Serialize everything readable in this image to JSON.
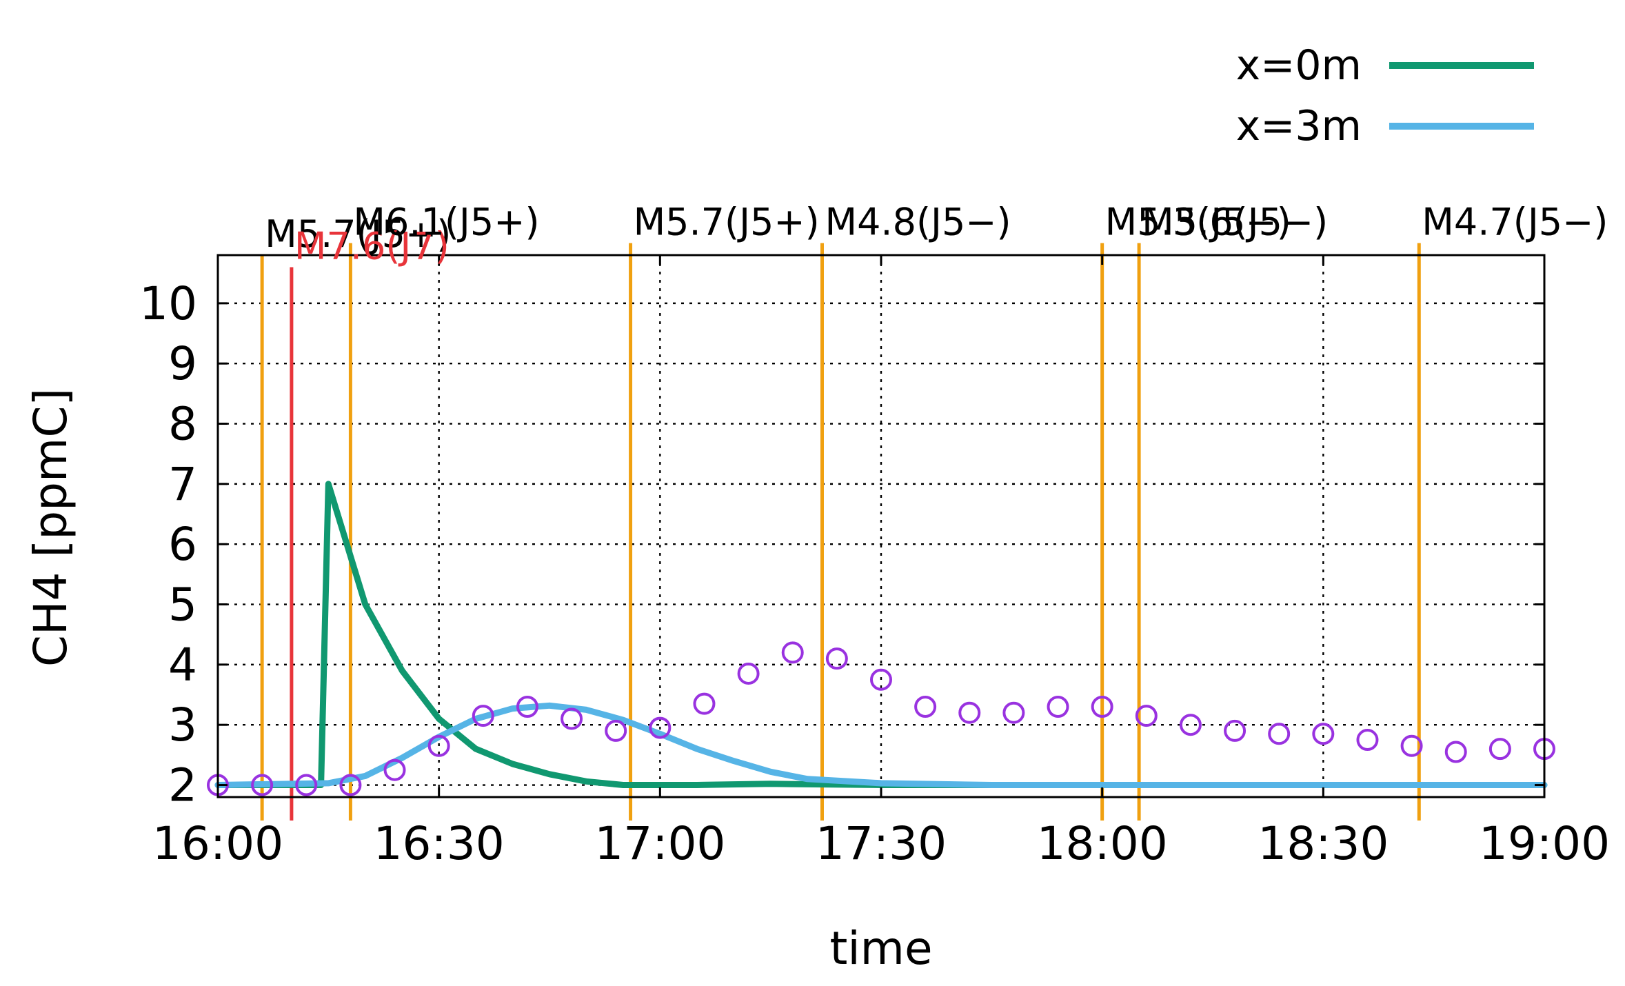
{
  "chart_data": {
    "type": "line",
    "title": "",
    "xlabel": "time",
    "ylabel": "CH4 [ppmC]",
    "x_ticks": [
      "16:00",
      "16:30",
      "17:00",
      "17:30",
      "18:00",
      "18:30",
      "19:00"
    ],
    "y_ticks": [
      "2",
      "3",
      "4",
      "5",
      "6",
      "7",
      "8",
      "9",
      "10"
    ],
    "xlim": [
      "16:00",
      "19:00"
    ],
    "ylim": [
      1.8,
      10.8
    ],
    "grid": true,
    "legend_position": "top-right",
    "series": [
      {
        "name": "x=0m",
        "kind": "line",
        "color": "#109870",
        "points": [
          [
            "16:00",
            2.0
          ],
          [
            "16:14",
            2.0
          ],
          [
            "16:15",
            7.0
          ],
          [
            "16:17",
            6.2
          ],
          [
            "16:20",
            5.0
          ],
          [
            "16:25",
            3.9
          ],
          [
            "16:30",
            3.1
          ],
          [
            "16:35",
            2.6
          ],
          [
            "16:40",
            2.35
          ],
          [
            "16:45",
            2.18
          ],
          [
            "16:50",
            2.06
          ],
          [
            "16:55",
            2.0
          ],
          [
            "17:00",
            2.0
          ],
          [
            "17:05",
            2.0
          ],
          [
            "17:15",
            2.02
          ],
          [
            "17:30",
            2.0
          ],
          [
            "19:00",
            2.0
          ]
        ]
      },
      {
        "name": "x=3m",
        "kind": "line",
        "color": "#56b4e6",
        "points": [
          [
            "16:00",
            2.0
          ],
          [
            "16:15",
            2.03
          ],
          [
            "16:20",
            2.15
          ],
          [
            "16:25",
            2.45
          ],
          [
            "16:30",
            2.8
          ],
          [
            "16:35",
            3.1
          ],
          [
            "16:40",
            3.27
          ],
          [
            "16:45",
            3.32
          ],
          [
            "16:50",
            3.25
          ],
          [
            "16:55",
            3.08
          ],
          [
            "17:00",
            2.85
          ],
          [
            "17:05",
            2.6
          ],
          [
            "17:10",
            2.4
          ],
          [
            "17:15",
            2.22
          ],
          [
            "17:20",
            2.1
          ],
          [
            "17:30",
            2.03
          ],
          [
            "17:45",
            2.0
          ],
          [
            "19:00",
            2.0
          ]
        ]
      },
      {
        "name": "",
        "kind": "markers",
        "color": "#9932e0",
        "points": [
          [
            "16:00",
            2.0
          ],
          [
            "16:06",
            2.0
          ],
          [
            "16:12",
            2.0
          ],
          [
            "16:18",
            2.0
          ],
          [
            "16:24",
            2.25
          ],
          [
            "16:30",
            2.65
          ],
          [
            "16:36",
            3.15
          ],
          [
            "16:42",
            3.3
          ],
          [
            "16:48",
            3.1
          ],
          [
            "16:54",
            2.9
          ],
          [
            "17:00",
            2.95
          ],
          [
            "17:06",
            3.35
          ],
          [
            "17:12",
            3.85
          ],
          [
            "17:18",
            4.2
          ],
          [
            "17:24",
            4.1
          ],
          [
            "17:30",
            3.75
          ],
          [
            "17:36",
            3.3
          ],
          [
            "17:42",
            3.2
          ],
          [
            "17:48",
            3.2
          ],
          [
            "17:54",
            3.3
          ],
          [
            "18:00",
            3.3
          ],
          [
            "18:06",
            3.15
          ],
          [
            "18:12",
            3.0
          ],
          [
            "18:18",
            2.9
          ],
          [
            "18:24",
            2.85
          ],
          [
            "18:30",
            2.85
          ],
          [
            "18:36",
            2.75
          ],
          [
            "18:42",
            2.65
          ],
          [
            "18:48",
            2.55
          ],
          [
            "18:54",
            2.6
          ],
          [
            "19:00",
            2.6
          ]
        ]
      }
    ],
    "earthquakes": [
      {
        "time": "16:06",
        "label": "M5.7(J5+)",
        "color": "#f0a010",
        "top": 10.8
      },
      {
        "time": "16:10",
        "label": "M7.6(J7)",
        "color": "#e8343a",
        "top": 10.6
      },
      {
        "time": "16:18",
        "label": "M6.1(J5+)",
        "color": "#f0a010",
        "top": 11.0
      },
      {
        "time": "16:56",
        "label": "M5.7(J5+)",
        "color": "#f0a010",
        "top": 11.0
      },
      {
        "time": "17:22",
        "label": "M4.8(J5−)",
        "color": "#f0a010",
        "top": 11.0
      },
      {
        "time": "18:00",
        "label": "M5.3(J5−)",
        "color": "#f0a010",
        "top": 11.0
      },
      {
        "time": "18:05",
        "label": "M5.6(J5−)",
        "color": "#f0a010",
        "top": 11.0
      },
      {
        "time": "18:43",
        "label": "M4.7(J5−)",
        "color": "#f0a010",
        "top": 11.0
      }
    ]
  }
}
